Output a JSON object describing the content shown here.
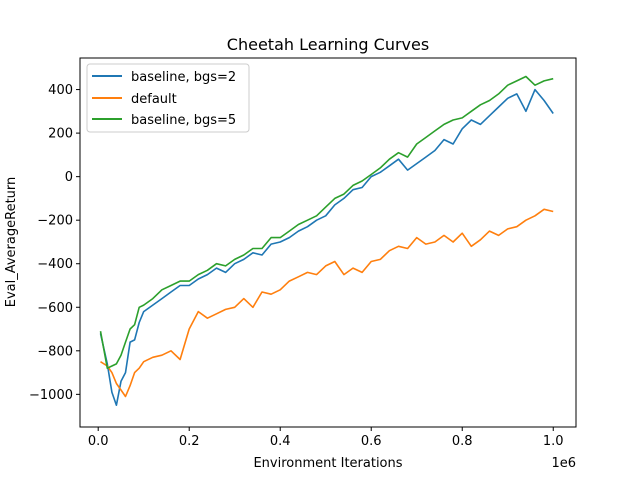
{
  "chart_data": {
    "type": "line",
    "title": "Cheetah Learning Curves",
    "xlabel": "Environment Iterations",
    "ylabel": "Eval_AverageReturn",
    "x_offset_label": "1e6",
    "xlim": [
      -0.04,
      1.05
    ],
    "ylim": [
      -1150,
      545
    ],
    "xticks": [
      0.0,
      0.2,
      0.4,
      0.6,
      0.8,
      1.0
    ],
    "xtick_labels": [
      "0.0",
      "0.2",
      "0.4",
      "0.6",
      "0.8",
      "1.0"
    ],
    "yticks": [
      -1000,
      -800,
      -600,
      -400,
      -200,
      0,
      200,
      400
    ],
    "ytick_labels": [
      "−1000",
      "−800",
      "−600",
      "−400",
      "−200",
      "0",
      "200",
      "400"
    ],
    "grid": false,
    "legend_position": "upper-left",
    "series": [
      {
        "name": "baseline, bgs=2",
        "color": "#1f77b4",
        "x": [
          0.005,
          0.02,
          0.03,
          0.04,
          0.05,
          0.06,
          0.07,
          0.08,
          0.09,
          0.1,
          0.12,
          0.14,
          0.16,
          0.18,
          0.2,
          0.22,
          0.24,
          0.26,
          0.28,
          0.3,
          0.32,
          0.34,
          0.36,
          0.38,
          0.4,
          0.42,
          0.44,
          0.46,
          0.48,
          0.5,
          0.52,
          0.54,
          0.56,
          0.58,
          0.6,
          0.62,
          0.64,
          0.66,
          0.68,
          0.7,
          0.72,
          0.74,
          0.76,
          0.78,
          0.8,
          0.82,
          0.84,
          0.86,
          0.88,
          0.9,
          0.92,
          0.94,
          0.96,
          0.98,
          1.0
        ],
        "y": [
          -720,
          -860,
          -990,
          -1050,
          -940,
          -900,
          -760,
          -750,
          -670,
          -620,
          -590,
          -560,
          -530,
          -500,
          -500,
          -470,
          -450,
          -420,
          -440,
          -400,
          -380,
          -350,
          -360,
          -310,
          -300,
          -280,
          -250,
          -230,
          -200,
          -180,
          -130,
          -100,
          -60,
          -50,
          0,
          20,
          50,
          80,
          30,
          60,
          90,
          120,
          170,
          150,
          220,
          260,
          240,
          280,
          320,
          360,
          380,
          300,
          400,
          350,
          290
        ]
      },
      {
        "name": "default",
        "color": "#ff7f0e",
        "x": [
          0.005,
          0.02,
          0.03,
          0.04,
          0.05,
          0.06,
          0.07,
          0.08,
          0.09,
          0.1,
          0.12,
          0.14,
          0.16,
          0.18,
          0.2,
          0.22,
          0.24,
          0.26,
          0.28,
          0.3,
          0.32,
          0.34,
          0.36,
          0.38,
          0.4,
          0.42,
          0.44,
          0.46,
          0.48,
          0.5,
          0.52,
          0.54,
          0.56,
          0.58,
          0.6,
          0.62,
          0.64,
          0.66,
          0.68,
          0.7,
          0.72,
          0.74,
          0.76,
          0.78,
          0.8,
          0.82,
          0.84,
          0.86,
          0.88,
          0.9,
          0.92,
          0.94,
          0.96,
          0.98,
          1.0
        ],
        "y": [
          -850,
          -870,
          -900,
          -950,
          -980,
          -1010,
          -960,
          -900,
          -880,
          -850,
          -830,
          -820,
          -800,
          -840,
          -700,
          -620,
          -650,
          -630,
          -610,
          -600,
          -560,
          -600,
          -530,
          -540,
          -520,
          -480,
          -460,
          -440,
          -450,
          -410,
          -390,
          -450,
          -420,
          -440,
          -390,
          -380,
          -340,
          -320,
          -330,
          -280,
          -310,
          -300,
          -270,
          -300,
          -260,
          -320,
          -290,
          -250,
          -270,
          -240,
          -230,
          -200,
          -180,
          -150,
          -160
        ]
      },
      {
        "name": "baseline, bgs=5",
        "color": "#2ca02c",
        "x": [
          0.005,
          0.02,
          0.03,
          0.04,
          0.05,
          0.06,
          0.07,
          0.08,
          0.09,
          0.1,
          0.12,
          0.14,
          0.16,
          0.18,
          0.2,
          0.22,
          0.24,
          0.26,
          0.28,
          0.3,
          0.32,
          0.34,
          0.36,
          0.38,
          0.4,
          0.42,
          0.44,
          0.46,
          0.48,
          0.5,
          0.52,
          0.54,
          0.56,
          0.58,
          0.6,
          0.62,
          0.64,
          0.66,
          0.68,
          0.7,
          0.72,
          0.74,
          0.76,
          0.78,
          0.8,
          0.82,
          0.84,
          0.86,
          0.88,
          0.9,
          0.92,
          0.94,
          0.96,
          0.98,
          1.0
        ],
        "y": [
          -710,
          -880,
          -870,
          -860,
          -820,
          -760,
          -700,
          -680,
          -600,
          -590,
          -560,
          -520,
          -500,
          -480,
          -480,
          -450,
          -430,
          -400,
          -410,
          -380,
          -360,
          -330,
          -330,
          -280,
          -280,
          -250,
          -220,
          -200,
          -180,
          -140,
          -100,
          -80,
          -40,
          -20,
          10,
          40,
          80,
          110,
          90,
          150,
          180,
          210,
          240,
          260,
          270,
          300,
          330,
          350,
          380,
          420,
          440,
          460,
          420,
          440,
          450
        ]
      }
    ]
  }
}
